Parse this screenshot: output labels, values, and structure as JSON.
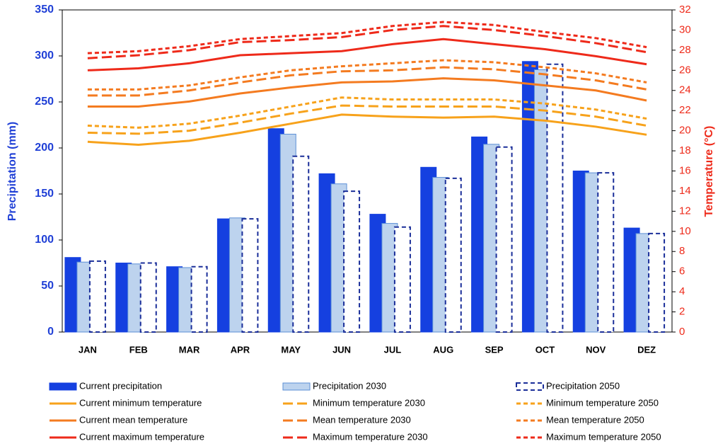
{
  "chart_data": {
    "type": "bar_line",
    "y_label": "Precipitation (mm)",
    "y2_label": "Temperature (°C)",
    "categories": [
      "JAN",
      "FEB",
      "MAR",
      "APR",
      "MAY",
      "JUN",
      "JUL",
      "AUG",
      "SEP",
      "OCT",
      "NOV",
      "DEZ"
    ],
    "ylim": [
      0,
      350
    ],
    "yticks": [
      0,
      50,
      100,
      150,
      200,
      250,
      300,
      350
    ],
    "y2lim": [
      0,
      32
    ],
    "y2ticks": [
      0,
      2,
      4,
      6,
      8,
      10,
      12,
      14,
      16,
      18,
      20,
      22,
      24,
      26,
      28,
      30,
      32
    ],
    "y_color": "#1f3fd6",
    "y2_color": "#ee2a1a",
    "series": [
      {
        "name": "Current precipitation",
        "kind": "bar",
        "color": "#1540e0",
        "edge_color": "#1540e0",
        "dash": "solid",
        "values": [
          81,
          75,
          71,
          123,
          221,
          172,
          128,
          179,
          212,
          294,
          175,
          113
        ]
      },
      {
        "name": "Precipitation 2030",
        "kind": "bar",
        "color": "#bdd3ee",
        "edge_color": "#5b8fd6",
        "dash": "solid",
        "values": [
          76,
          74,
          70,
          124,
          215,
          161,
          118,
          168,
          204,
          285,
          173,
          107
        ]
      },
      {
        "name": "Precipitation 2050",
        "kind": "bar",
        "color": "#ffffff",
        "edge_color": "#1a2e99",
        "dash": "dotted",
        "values": [
          77,
          75,
          71,
          123,
          191,
          153,
          114,
          167,
          201,
          291,
          173,
          107
        ]
      },
      {
        "name": "Current minimum temperature",
        "kind": "line",
        "axis": "y2",
        "color": "#f7a21b",
        "dash": "solid",
        "values": [
          18.9,
          18.6,
          19.0,
          19.8,
          20.7,
          21.6,
          21.4,
          21.3,
          21.4,
          21.0,
          20.4,
          19.6
        ]
      },
      {
        "name": "Minimum temperature 2030",
        "kind": "line",
        "axis": "y2",
        "color": "#f7a21b",
        "dash": "dashed",
        "values": [
          19.8,
          19.7,
          20.0,
          20.8,
          21.7,
          22.5,
          22.4,
          22.4,
          22.4,
          22.0,
          21.4,
          20.5
        ]
      },
      {
        "name": "Minimum temperature 2050",
        "kind": "line",
        "axis": "y2",
        "color": "#f7a21b",
        "dash": "dotted",
        "values": [
          20.5,
          20.3,
          20.7,
          21.5,
          22.4,
          23.3,
          23.1,
          23.1,
          23.1,
          22.7,
          22.1,
          21.2
        ]
      },
      {
        "name": "Current mean temperature",
        "kind": "line",
        "axis": "y2",
        "color": "#f47b20",
        "dash": "solid",
        "values": [
          22.4,
          22.4,
          22.9,
          23.7,
          24.3,
          24.8,
          24.9,
          25.2,
          25.0,
          24.5,
          24.0,
          23.0
        ]
      },
      {
        "name": "Mean temperature 2030",
        "kind": "line",
        "axis": "y2",
        "color": "#f47b20",
        "dash": "dashed",
        "values": [
          23.5,
          23.5,
          24.0,
          24.8,
          25.5,
          25.9,
          26.0,
          26.3,
          26.1,
          25.6,
          25.0,
          24.1
        ]
      },
      {
        "name": "Mean temperature 2050",
        "kind": "line",
        "axis": "y2",
        "color": "#f47b20",
        "dash": "dotted",
        "values": [
          24.1,
          24.1,
          24.5,
          25.3,
          26.0,
          26.4,
          26.7,
          27.0,
          26.8,
          26.3,
          25.7,
          24.8
        ]
      },
      {
        "name": "Current maximum temperature",
        "kind": "line",
        "axis": "y2",
        "color": "#ee2a1a",
        "dash": "solid",
        "values": [
          26.0,
          26.2,
          26.7,
          27.5,
          27.7,
          27.9,
          28.6,
          29.1,
          28.6,
          28.1,
          27.4,
          26.6
        ]
      },
      {
        "name": "Maximum temperature 2030",
        "kind": "line",
        "axis": "y2",
        "color": "#ee2a1a",
        "dash": "dashed",
        "values": [
          27.2,
          27.5,
          28.0,
          28.8,
          29.0,
          29.3,
          30.0,
          30.4,
          30.0,
          29.4,
          28.7,
          27.8
        ]
      },
      {
        "name": "Maximum temperature 2050",
        "kind": "line",
        "axis": "y2",
        "color": "#ee2a1a",
        "dash": "dotted",
        "values": [
          27.7,
          27.9,
          28.4,
          29.1,
          29.4,
          29.7,
          30.4,
          30.8,
          30.5,
          29.8,
          29.2,
          28.3
        ]
      }
    ]
  }
}
